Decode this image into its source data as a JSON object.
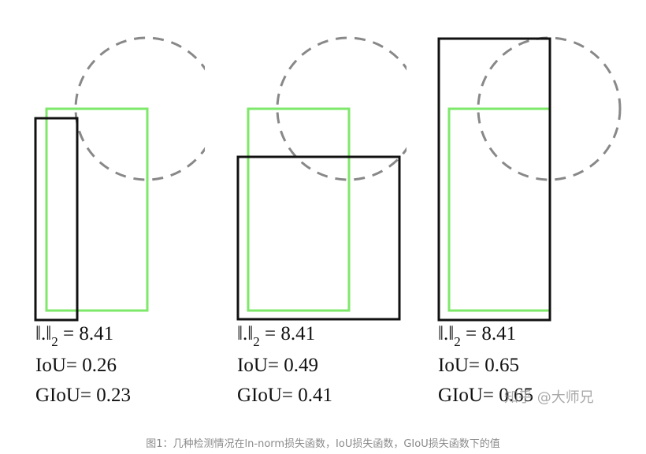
{
  "cases": [
    {
      "norm_symbol": "‖.‖",
      "norm_subscript": "2",
      "norm_value": "= 8.41",
      "iou_label": "IoU= 0.26",
      "giou_label": "GIoU= 0.23"
    },
    {
      "norm_symbol": "‖.‖",
      "norm_subscript": "2",
      "norm_value": "= 8.41",
      "iou_label": "IoU= 0.49",
      "giou_label": "GIoU= 0.41"
    },
    {
      "norm_symbol": "‖.‖",
      "norm_subscript": "2",
      "norm_value": "= 8.41",
      "iou_label": "IoU= 0.65",
      "giou_label": "GIoU= 0.65"
    }
  ],
  "caption": "图1：几种检测情况在ln-norm损失函数，IoU损失函数，GIoU损失函数下的值",
  "watermark": "知乎 @大师兄",
  "colors": {
    "ground_truth_box": "#7ee86a",
    "predicted_box": "#111111",
    "dashed_circle": "#888888"
  }
}
